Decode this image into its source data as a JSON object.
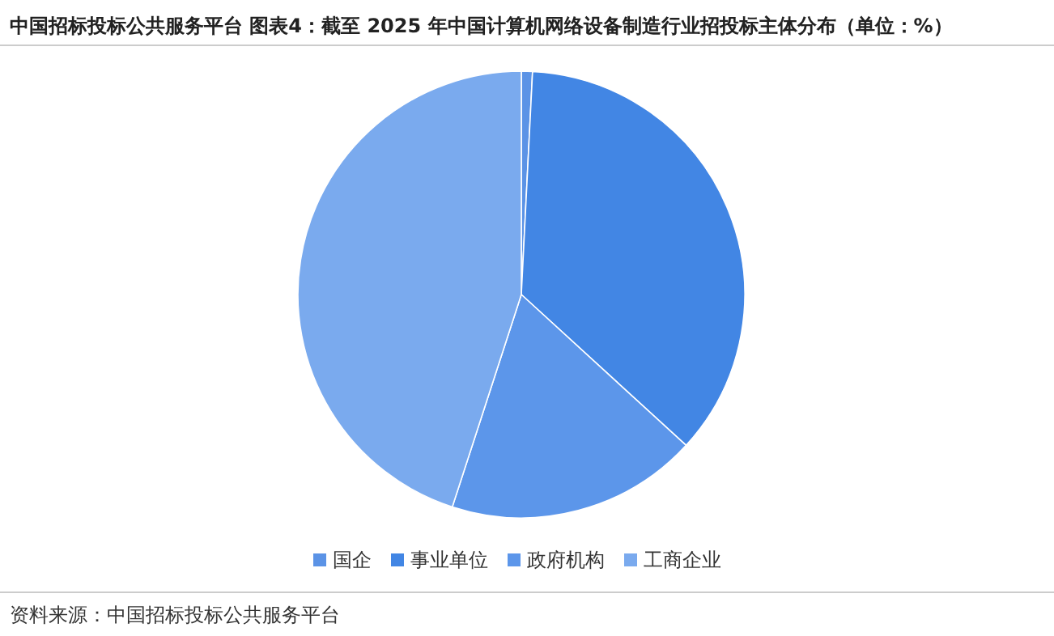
{
  "chart_data": {
    "type": "pie",
    "title": "中国招标投标公共服务平台  图表4：截至 2025 年中国计算机网络设备制造行业招投标主体分布（单位：%）",
    "categories": [
      "国企",
      "事业单位",
      "政府机构",
      "工商企业"
    ],
    "values": [
      0.8,
      36.0,
      18.2,
      45.0
    ],
    "colors": [
      "#5b93e6",
      "#4286e4",
      "#5c96ea",
      "#7aaaee"
    ],
    "legend": "bottom",
    "annotations": [
      "资料来源：中国招标投标公共服务平台"
    ]
  }
}
